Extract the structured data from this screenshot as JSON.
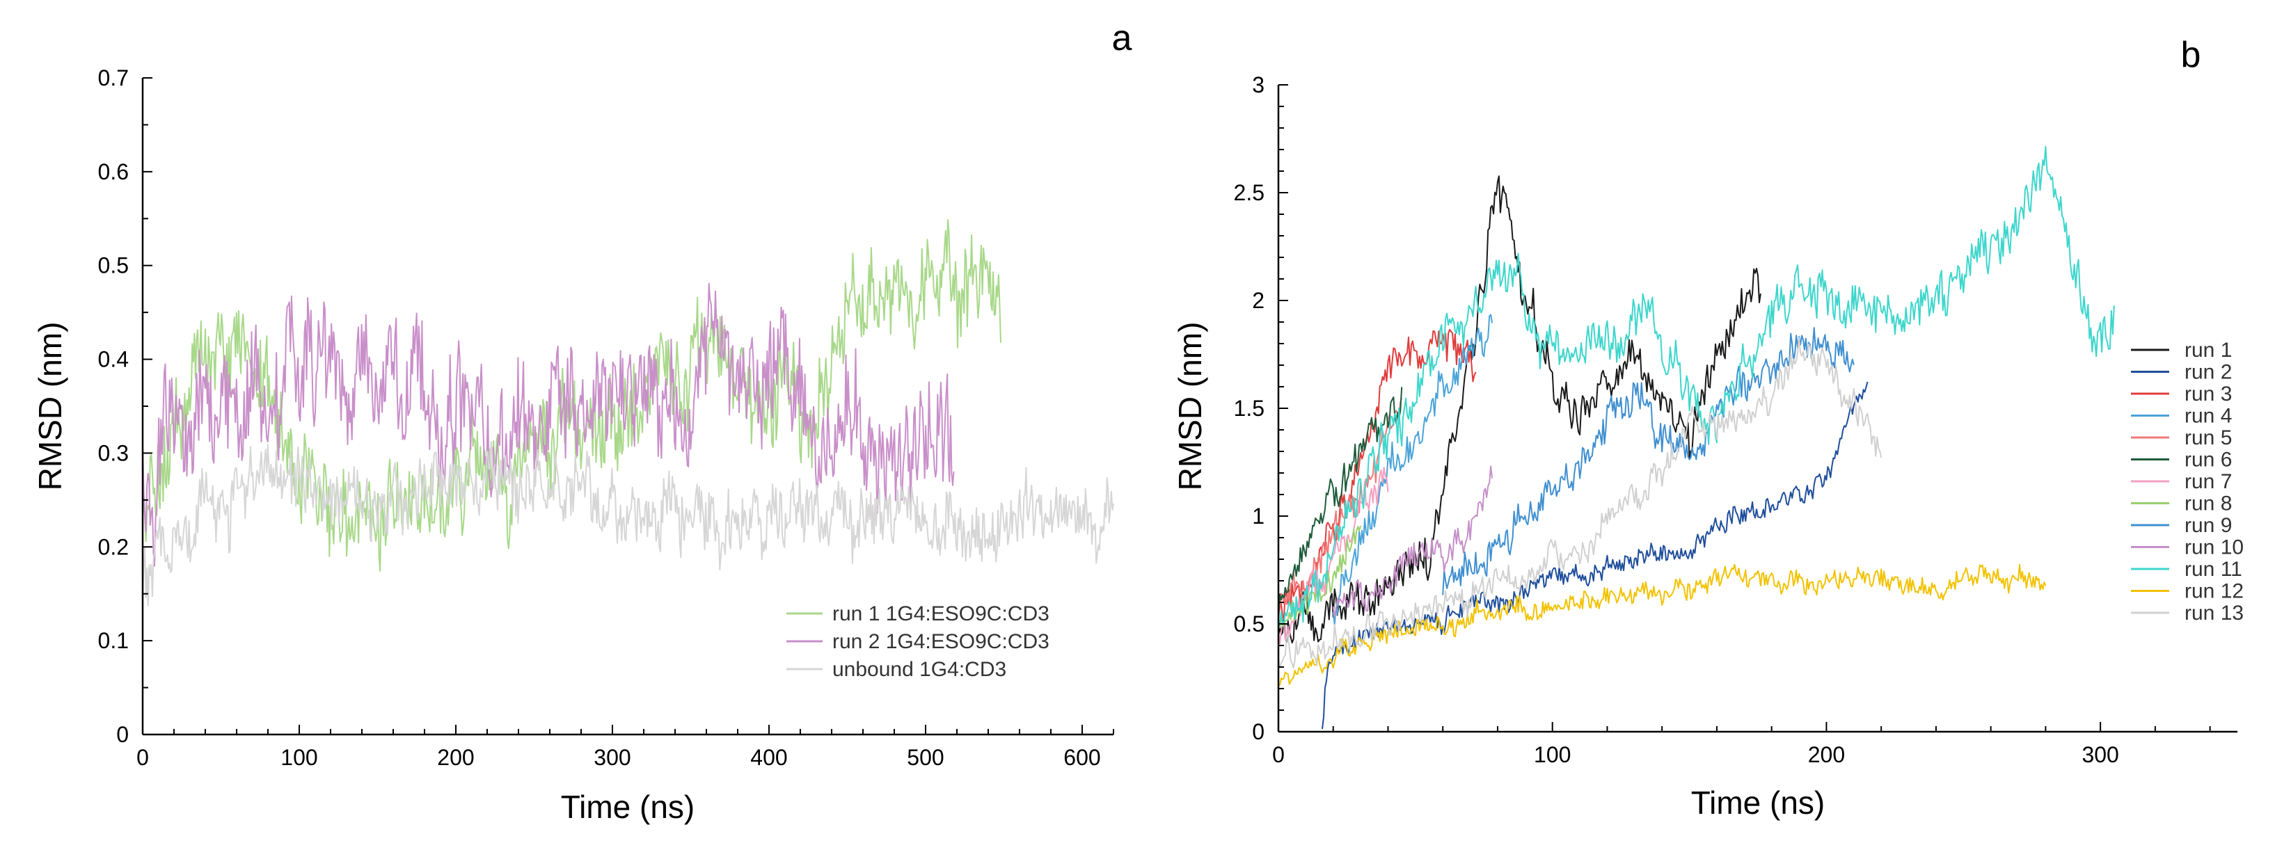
{
  "chart_data": [
    {
      "type": "line",
      "panel_label": "a",
      "xlabel": "Time (ns)",
      "ylabel": "RMSD (nm)",
      "xlim": [
        0,
        620
      ],
      "ylim": [
        0,
        0.7
      ],
      "x_ticks": [
        0,
        100,
        200,
        300,
        400,
        500,
        600
      ],
      "y_ticks": [
        0,
        0.1,
        0.2,
        0.3,
        0.4,
        0.5,
        0.6,
        0.7
      ],
      "x_tick_labels": [
        "0",
        "100",
        "200",
        "300",
        "400",
        "500",
        "600"
      ],
      "y_tick_labels": [
        "0",
        "0.1",
        "0.2",
        "0.3",
        "0.4",
        "0.5",
        "0.6",
        "0.7"
      ],
      "legend_position": "lower-right",
      "series": [
        {
          "name": "run 1 1G4:ESO9C:CD3",
          "color": "#a8d88a",
          "noise": 0.07,
          "points": [
            [
              0,
              0.22
            ],
            [
              10,
              0.28
            ],
            [
              30,
              0.38
            ],
            [
              50,
              0.43
            ],
            [
              70,
              0.4
            ],
            [
              90,
              0.33
            ],
            [
              110,
              0.28
            ],
            [
              130,
              0.24
            ],
            [
              150,
              0.23
            ],
            [
              170,
              0.26
            ],
            [
              200,
              0.27
            ],
            [
              230,
              0.29
            ],
            [
              260,
              0.31
            ],
            [
              300,
              0.34
            ],
            [
              330,
              0.36
            ],
            [
              360,
              0.4
            ],
            [
              380,
              0.38
            ],
            [
              400,
              0.35
            ],
            [
              420,
              0.33
            ],
            [
              440,
              0.38
            ],
            [
              460,
              0.43
            ],
            [
              480,
              0.46
            ],
            [
              500,
              0.48
            ],
            [
              520,
              0.5
            ],
            [
              535,
              0.47
            ],
            [
              548,
              0.42
            ]
          ]
        },
        {
          "name": "run 2 1G4:ESO9C:CD3",
          "color": "#c98fc9",
          "noise": 0.09,
          "points": [
            [
              0,
              0.26
            ],
            [
              20,
              0.3
            ],
            [
              40,
              0.33
            ],
            [
              60,
              0.35
            ],
            [
              80,
              0.37
            ],
            [
              100,
              0.38
            ],
            [
              120,
              0.4
            ],
            [
              140,
              0.36
            ],
            [
              160,
              0.35
            ],
            [
              180,
              0.38
            ],
            [
              200,
              0.34
            ],
            [
              220,
              0.35
            ],
            [
              240,
              0.33
            ],
            [
              260,
              0.32
            ],
            [
              280,
              0.33
            ],
            [
              300,
              0.35
            ],
            [
              320,
              0.34
            ],
            [
              340,
              0.36
            ],
            [
              360,
              0.4
            ],
            [
              380,
              0.38
            ],
            [
              400,
              0.36
            ],
            [
              420,
              0.33
            ],
            [
              440,
              0.33
            ],
            [
              460,
              0.32
            ],
            [
              480,
              0.32
            ],
            [
              500,
              0.31
            ],
            [
              518,
              0.3
            ]
          ]
        },
        {
          "name": "unbound 1G4:CD3",
          "color": "#d6d6d6",
          "noise": 0.05,
          "points": [
            [
              0,
              0.15
            ],
            [
              20,
              0.2
            ],
            [
              40,
              0.24
            ],
            [
              60,
              0.26
            ],
            [
              80,
              0.27
            ],
            [
              100,
              0.26
            ],
            [
              150,
              0.26
            ],
            [
              200,
              0.27
            ],
            [
              250,
              0.27
            ],
            [
              300,
              0.25
            ],
            [
              350,
              0.24
            ],
            [
              400,
              0.23
            ],
            [
              450,
              0.23
            ],
            [
              500,
              0.23
            ],
            [
              550,
              0.23
            ],
            [
              600,
              0.23
            ],
            [
              620,
              0.24
            ]
          ]
        }
      ]
    },
    {
      "type": "line",
      "panel_label": "b",
      "xlabel": "Time (ns)",
      "ylabel": "RMSD (nm)",
      "xlim": [
        0,
        350
      ],
      "ylim": [
        0,
        3
      ],
      "x_ticks": [
        0,
        100,
        200,
        300
      ],
      "y_ticks": [
        0,
        0.5,
        1,
        1.5,
        2,
        2.5,
        3
      ],
      "x_tick_labels": [
        "0",
        "100",
        "200",
        "300"
      ],
      "y_tick_labels": [
        "0",
        "0.5",
        "1",
        "1.5",
        "2",
        "2.5",
        "3"
      ],
      "legend_position": "right",
      "series": [
        {
          "name": "run 1",
          "color": "#1a1a1a",
          "noise": 0.14,
          "points": [
            [
              0,
              0.5
            ],
            [
              20,
              0.55
            ],
            [
              40,
              0.7
            ],
            [
              55,
              0.8
            ],
            [
              65,
              1.3
            ],
            [
              75,
              2.2
            ],
            [
              80,
              2.5
            ],
            [
              85,
              2.4
            ],
            [
              90,
              2.0
            ],
            [
              100,
              1.7
            ],
            [
              110,
              1.5
            ],
            [
              120,
              1.6
            ],
            [
              130,
              1.7
            ],
            [
              140,
              1.5
            ],
            [
              150,
              1.4
            ],
            [
              160,
              1.8
            ],
            [
              170,
              2.0
            ],
            [
              176,
              2.0
            ]
          ]
        },
        {
          "name": "run 2",
          "color": "#1f4e9c",
          "noise": 0.07,
          "points": [
            [
              16,
              0.02
            ],
            [
              18,
              0.35
            ],
            [
              30,
              0.45
            ],
            [
              50,
              0.5
            ],
            [
              70,
              0.6
            ],
            [
              90,
              0.65
            ],
            [
              110,
              0.7
            ],
            [
              130,
              0.8
            ],
            [
              150,
              0.85
            ],
            [
              160,
              0.95
            ],
            [
              170,
              1.0
            ],
            [
              180,
              1.05
            ],
            [
              190,
              1.1
            ],
            [
              200,
              1.2
            ],
            [
              210,
              1.5
            ],
            [
              215,
              1.6
            ]
          ]
        },
        {
          "name": "run 3",
          "color": "#e03c3c",
          "noise": 0.12,
          "points": [
            [
              0,
              0.6
            ],
            [
              10,
              0.7
            ],
            [
              20,
              0.9
            ],
            [
              30,
              1.3
            ],
            [
              40,
              1.7
            ],
            [
              50,
              1.8
            ],
            [
              60,
              1.8
            ],
            [
              72,
              1.7
            ]
          ]
        },
        {
          "name": "run 4",
          "color": "#4aa3d8",
          "noise": 0.12,
          "points": [
            [
              20,
              0.6
            ],
            [
              30,
              0.8
            ],
            [
              40,
              1.2
            ],
            [
              50,
              1.4
            ],
            [
              60,
              1.6
            ],
            [
              70,
              1.8
            ],
            [
              78,
              1.9
            ]
          ]
        },
        {
          "name": "run 5",
          "color": "#f07a7a",
          "noise": 0.12,
          "points": [
            [
              0,
              0.6
            ],
            [
              10,
              0.7
            ],
            [
              20,
              0.9
            ],
            [
              30,
              1.1
            ],
            [
              40,
              1.4
            ],
            [
              45,
              1.5
            ]
          ]
        },
        {
          "name": "run 6",
          "color": "#1e5b3a",
          "noise": 0.12,
          "points": [
            [
              0,
              0.6
            ],
            [
              10,
              0.85
            ],
            [
              20,
              1.1
            ],
            [
              30,
              1.3
            ],
            [
              40,
              1.5
            ],
            [
              45,
              1.55
            ]
          ]
        },
        {
          "name": "run 7",
          "color": "#f5a0c0",
          "noise": 0.12,
          "points": [
            [
              0,
              0.5
            ],
            [
              10,
              0.6
            ],
            [
              20,
              0.8
            ],
            [
              30,
              1.0
            ],
            [
              40,
              1.2
            ]
          ]
        },
        {
          "name": "run 8",
          "color": "#9ccf6f",
          "noise": 0.1,
          "points": [
            [
              0,
              0.5
            ],
            [
              10,
              0.6
            ],
            [
              20,
              0.7
            ],
            [
              30,
              0.9
            ]
          ]
        },
        {
          "name": "run 9",
          "color": "#3f8fd0",
          "noise": 0.12,
          "points": [
            [
              60,
              0.7
            ],
            [
              70,
              0.8
            ],
            [
              80,
              0.9
            ],
            [
              90,
              1.0
            ],
            [
              100,
              1.1
            ],
            [
              110,
              1.2
            ],
            [
              120,
              1.5
            ],
            [
              130,
              1.6
            ],
            [
              140,
              1.4
            ],
            [
              150,
              1.3
            ],
            [
              160,
              1.5
            ],
            [
              170,
              1.6
            ],
            [
              180,
              1.7
            ],
            [
              190,
              1.8
            ],
            [
              200,
              1.8
            ],
            [
              210,
              1.7
            ]
          ]
        },
        {
          "name": "run 10",
          "color": "#c690c8",
          "noise": 0.1,
          "points": [
            [
              20,
              0.6
            ],
            [
              40,
              0.7
            ],
            [
              60,
              0.8
            ],
            [
              70,
              0.9
            ],
            [
              75,
              1.1
            ],
            [
              78,
              1.2
            ]
          ]
        },
        {
          "name": "run 11",
          "color": "#3dd6cc",
          "noise": 0.16,
          "points": [
            [
              0,
              0.5
            ],
            [
              15,
              0.7
            ],
            [
              30,
              1.1
            ],
            [
              45,
              1.4
            ],
            [
              60,
              1.8
            ],
            [
              75,
              2.0
            ],
            [
              85,
              2.2
            ],
            [
              95,
              1.8
            ],
            [
              110,
              1.7
            ],
            [
              120,
              1.8
            ],
            [
              130,
              2.0
            ],
            [
              140,
              1.8
            ],
            [
              150,
              1.6
            ],
            [
              160,
              1.5
            ],
            [
              170,
              1.7
            ],
            [
              180,
              2.0
            ],
            [
              190,
              2.1
            ],
            [
              200,
              2.0
            ],
            [
              210,
              2.0
            ],
            [
              220,
              2.0
            ],
            [
              230,
              1.9
            ],
            [
              240,
              2.0
            ],
            [
              250,
              2.1
            ],
            [
              260,
              2.2
            ],
            [
              270,
              2.4
            ],
            [
              280,
              2.7
            ],
            [
              285,
              2.4
            ],
            [
              290,
              2.2
            ],
            [
              295,
              1.9
            ],
            [
              300,
              1.8
            ],
            [
              305,
              1.95
            ]
          ]
        },
        {
          "name": "run 12",
          "color": "#f2c200",
          "noise": 0.07,
          "points": [
            [
              0,
              0.25
            ],
            [
              20,
              0.35
            ],
            [
              40,
              0.45
            ],
            [
              60,
              0.5
            ],
            [
              80,
              0.55
            ],
            [
              100,
              0.6
            ],
            [
              120,
              0.62
            ],
            [
              140,
              0.65
            ],
            [
              160,
              0.72
            ],
            [
              180,
              0.72
            ],
            [
              200,
              0.7
            ],
            [
              220,
              0.7
            ],
            [
              240,
              0.68
            ],
            [
              260,
              0.7
            ],
            [
              270,
              0.72
            ],
            [
              280,
              0.68
            ]
          ]
        },
        {
          "name": "run 13",
          "color": "#d0d0d0",
          "noise": 0.1,
          "points": [
            [
              0,
              0.35
            ],
            [
              30,
              0.5
            ],
            [
              60,
              0.6
            ],
            [
              90,
              0.75
            ],
            [
              110,
              0.85
            ],
            [
              120,
              1.0
            ],
            [
              130,
              1.1
            ],
            [
              140,
              1.2
            ],
            [
              150,
              1.4
            ],
            [
              160,
              1.4
            ],
            [
              170,
              1.5
            ],
            [
              180,
              1.5
            ],
            [
              190,
              1.8
            ],
            [
              200,
              1.7
            ],
            [
              210,
              1.5
            ],
            [
              220,
              1.3
            ]
          ]
        }
      ]
    }
  ]
}
